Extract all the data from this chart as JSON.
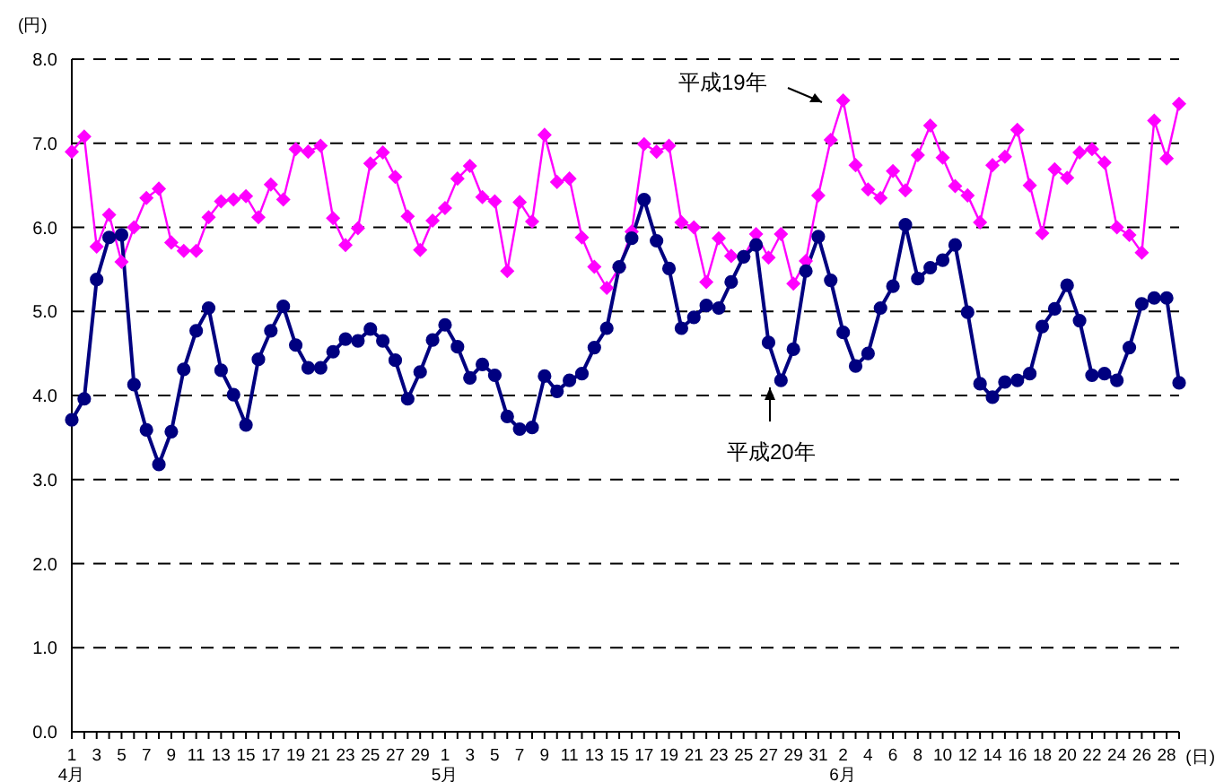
{
  "chart_data": {
    "type": "line",
    "xlabel": "(日)",
    "ylabel": "(円)",
    "categories": [
      "1\n4月",
      null,
      "3",
      null,
      "5",
      null,
      "7",
      null,
      "9",
      null,
      "11",
      null,
      "13",
      null,
      "15",
      null,
      "17",
      null,
      "19",
      null,
      "21",
      null,
      "23",
      null,
      "25",
      null,
      "27",
      null,
      "29",
      null,
      "1\n5月",
      null,
      "3",
      null,
      "5",
      null,
      "7",
      null,
      "9",
      null,
      "11",
      null,
      "13",
      null,
      "15",
      null,
      "17",
      null,
      "19",
      null,
      "21",
      null,
      "23",
      null,
      "25",
      null,
      "27",
      null,
      "29",
      null,
      "31",
      null,
      "2\n6月",
      null,
      "4",
      null,
      "6",
      null,
      "8",
      null,
      "10",
      null,
      "12",
      null,
      "14",
      null,
      "16",
      null,
      "18",
      null,
      "20",
      null,
      "22",
      null,
      "24",
      null,
      "26",
      null,
      "28",
      null
    ],
    "series": [
      {
        "name": "平成19年",
        "color": "#ff00ff",
        "marker": "diamond",
        "values": [
          6.9,
          7.08,
          5.77,
          6.15,
          5.59,
          6.0,
          6.35,
          6.46,
          5.82,
          5.72,
          5.72,
          6.12,
          6.31,
          6.33,
          6.37,
          6.12,
          6.51,
          6.33,
          6.93,
          6.9,
          6.97,
          6.11,
          5.79,
          5.99,
          6.76,
          6.89,
          6.6,
          6.13,
          5.73,
          6.08,
          6.23,
          6.58,
          6.73,
          6.36,
          6.31,
          5.48,
          6.3,
          6.07,
          7.1,
          6.54,
          6.58,
          5.88,
          5.53,
          5.28,
          5.52,
          5.95,
          6.99,
          6.9,
          6.97,
          6.06,
          6.0,
          5.35,
          5.87,
          5.66,
          5.65,
          5.92,
          5.64,
          5.92,
          5.33,
          5.6,
          6.38,
          7.04,
          7.51,
          6.74,
          6.45,
          6.35,
          6.67,
          6.44,
          6.86,
          7.21,
          6.83,
          6.49,
          6.38,
          6.06,
          6.74,
          6.84,
          7.16,
          6.5,
          5.93,
          6.69,
          6.59,
          6.89,
          6.93,
          6.77,
          6.0,
          5.91,
          5.7,
          7.27,
          6.82,
          7.47
        ]
      },
      {
        "name": "平成20年",
        "color": "#000080",
        "marker": "circle",
        "values": [
          3.71,
          3.96,
          5.38,
          5.88,
          5.91,
          4.13,
          3.59,
          3.18,
          3.57,
          4.31,
          4.77,
          5.04,
          4.3,
          4.01,
          3.65,
          4.43,
          4.77,
          5.06,
          4.6,
          4.33,
          4.33,
          4.52,
          4.67,
          4.65,
          4.79,
          4.65,
          4.42,
          3.96,
          4.28,
          4.66,
          4.84,
          4.58,
          4.21,
          4.37,
          4.24,
          3.75,
          3.6,
          3.62,
          4.23,
          4.05,
          4.18,
          4.26,
          4.57,
          4.8,
          5.53,
          5.87,
          6.33,
          5.84,
          5.51,
          4.8,
          4.93,
          5.07,
          5.04,
          5.35,
          5.65,
          5.79,
          4.63,
          4.18,
          4.55,
          5.48,
          5.89,
          5.37,
          4.75,
          4.35,
          4.5,
          5.04,
          5.3,
          6.03,
          5.39,
          5.52,
          5.61,
          5.79,
          4.99,
          4.14,
          3.98,
          4.16,
          4.18,
          4.26,
          4.82,
          5.03,
          5.31,
          4.89,
          4.24,
          4.26,
          4.18,
          4.57,
          5.09,
          5.16,
          5.16,
          4.15
        ]
      }
    ],
    "ylim": [
      0,
      8
    ],
    "yticks": [
      {
        "value": 0,
        "label": "0.0"
      },
      {
        "value": 1,
        "label": "1.0"
      },
      {
        "value": 2,
        "label": "2.0"
      },
      {
        "value": 3,
        "label": "3.0"
      },
      {
        "value": 4,
        "label": "4.0"
      },
      {
        "value": 5,
        "label": "5.0"
      },
      {
        "value": 6,
        "label": "6.0"
      },
      {
        "value": 7,
        "label": "7.0"
      },
      {
        "value": 8,
        "label": "8.0"
      }
    ],
    "grid": "y",
    "legend": false,
    "line_style": "solid"
  }
}
